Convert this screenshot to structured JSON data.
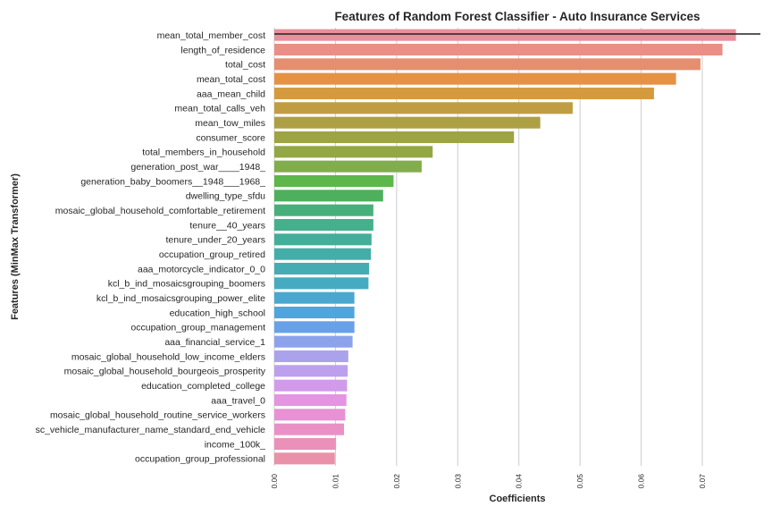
{
  "chart_data": {
    "type": "bar",
    "orientation": "horizontal",
    "title": "Features of Random Forest Classifier - Auto Insurance Services",
    "xlabel": "Coefficients",
    "ylabel": "Features (MinMax Transformer)",
    "xlim": [
      0,
      0.0795
    ],
    "xticks": [
      "0.00",
      "0.01",
      "0.02",
      "0.03",
      "0.04",
      "0.05",
      "0.06",
      "0.07"
    ],
    "grid": "vertical",
    "reference_line": 0.0795,
    "categories": [
      "mean_total_member_cost",
      "length_of_residence",
      "total_cost",
      "mean_total_cost",
      "aaa_mean_child",
      "mean_total_calls_veh",
      "mean_tow_miles",
      "consumer_score",
      "total_members_in_household",
      "generation_post_war____1948_",
      "generation_baby_boomers__1948___1968_",
      "dwelling_type_sfdu",
      "mosaic_global_household_comfortable_retirement",
      "tenure__40_years",
      "tenure_under_20_years",
      "occupation_group_retired",
      "aaa_motorcycle_indicator_0_0",
      "kcl_b_ind_mosaicsgrouping_boomers",
      "kcl_b_ind_mosaicsgrouping_power_elite",
      "education_high_school",
      "occupation_group_management",
      "aaa_financial_service_1",
      "mosaic_global_household_low_income_elders",
      "mosaic_global_household_bourgeois_prosperity",
      "education_completed_college",
      "aaa_travel_0",
      "mosaic_global_household_routine_service_workers",
      "sc_vehicle_manufacturer_name_standard_end_vehicle",
      "income_100k_",
      "occupation_group_professional"
    ],
    "values": [
      0.0755,
      0.0733,
      0.0697,
      0.0657,
      0.0621,
      0.0488,
      0.0435,
      0.0392,
      0.0259,
      0.0241,
      0.0195,
      0.0178,
      0.0162,
      0.0162,
      0.0159,
      0.0158,
      0.0155,
      0.0154,
      0.0131,
      0.0131,
      0.0131,
      0.0128,
      0.0121,
      0.012,
      0.0119,
      0.0118,
      0.0116,
      0.0114,
      0.0101,
      0.0099
    ],
    "colors": [
      "#e8909b",
      "#e98f86",
      "#e58e70",
      "#e59245",
      "#d69a3e",
      "#c09d42",
      "#ada044",
      "#9ea344",
      "#93a744",
      "#82ad4b",
      "#5db74b",
      "#4eb05d",
      "#47b07a",
      "#44b08c",
      "#43ae99",
      "#44ada7",
      "#45acb4",
      "#46abc0",
      "#4aa8cf",
      "#4fa5de",
      "#68a1e7",
      "#8ca3ec",
      "#aaa3ec",
      "#bca0ed",
      "#d19aea",
      "#e594e3",
      "#e891d4",
      "#eb90c7",
      "#eb90b8",
      "#e991a8"
    ]
  }
}
